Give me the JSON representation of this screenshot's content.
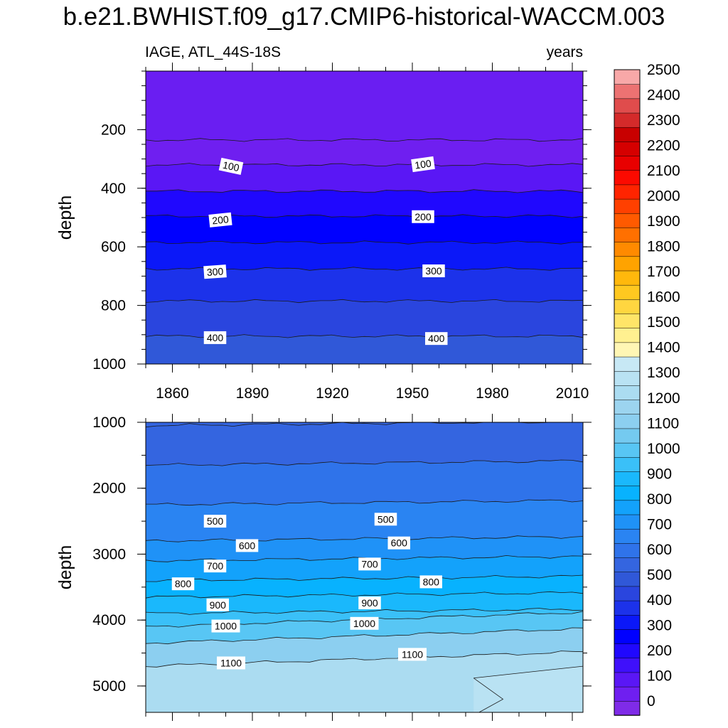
{
  "chart_data": {
    "type": "heatmap",
    "title": "b.e21.BWHIST.f09_g17.CMIP6-historical-WACCM.003",
    "subtitle_left": "IAGE, ATL_44S-18S",
    "subtitle_right": "years",
    "ylabel": "depth",
    "colorbar": {
      "levels": [
        0,
        100,
        200,
        300,
        400,
        500,
        600,
        700,
        800,
        900,
        1000,
        1100,
        1200,
        1300,
        1400,
        1500,
        1600,
        1700,
        1800,
        1900,
        2000,
        2100,
        2200,
        2300,
        2400,
        2500
      ],
      "labels": [
        "0",
        "100",
        "200",
        "300",
        "400",
        "500",
        "600",
        "700",
        "800",
        "900",
        "1000",
        "1100",
        "1200",
        "1300",
        "1400",
        "1500",
        "1600",
        "1700",
        "1800",
        "1900",
        "2000",
        "2100",
        "2200",
        "2300",
        "2400",
        "2500"
      ],
      "colors": [
        "#7f2be8",
        "#6f1ff0",
        "#5a17f5",
        "#3f10fb",
        "#2008fe",
        "#0000ff",
        "#0b18f8",
        "#1c32ea",
        "#2a45de",
        "#3058d8",
        "#3465e0",
        "#2f73ea",
        "#2a84f2",
        "#1f92f7",
        "#13a2fb",
        "#08b2fe",
        "#1ab8fc",
        "#3ac0f8",
        "#58c6f4",
        "#74caf0",
        "#8ccff0",
        "#9cd4ef",
        "#abdcf1",
        "#b9e2f3",
        "#c7e8f5",
        "#fff6b4",
        "#fff090",
        "#ffe568",
        "#ffd640",
        "#ffc820",
        "#ffb80c",
        "#ffa300",
        "#ff8a00",
        "#ff7000",
        "#ff5a00",
        "#ff4000",
        "#ff2400",
        "#fc0a00",
        "#e80000",
        "#d50000",
        "#c80000",
        "#d42a2a",
        "#e04c4c",
        "#ec7272",
        "#f8a8a8"
      ],
      "color_levels": [
        0,
        50,
        100,
        150,
        200,
        250,
        300,
        350,
        400,
        450,
        500,
        550,
        600,
        650,
        700,
        750,
        800,
        850,
        900,
        950,
        1000,
        1050,
        1100,
        1150,
        1200,
        1250,
        1300,
        1350,
        1400,
        1450,
        1500,
        1550,
        1600,
        1650,
        1700,
        1750,
        1800,
        1850,
        1900,
        1950,
        2000,
        2100,
        2200,
        2300,
        2400,
        2500
      ]
    },
    "panels": [
      {
        "name": "upper ocean",
        "xlim": [
          1850,
          2014
        ],
        "x_ticks": [
          1860,
          1890,
          1920,
          1950,
          1980,
          2010
        ],
        "x_tick_labels": [
          "1860",
          "1890",
          "1920",
          "1950",
          "1980",
          "2010"
        ],
        "ylim": [
          0,
          1000
        ],
        "y_reversed": true,
        "y_ticks": [
          200,
          400,
          600,
          800,
          1000
        ],
        "y_tick_labels": [
          "200",
          "400",
          "600",
          "800",
          "1000"
        ],
        "contours": [
          {
            "level": 50,
            "depth": 235,
            "fill": "#6f1ff0"
          },
          {
            "level": 100,
            "depth": 320,
            "fill": "#5a17f5"
          },
          {
            "level": 150,
            "depth": 410,
            "fill": "#2008fe"
          },
          {
            "level": 200,
            "depth": 495,
            "fill": "#0000ff"
          },
          {
            "level": 250,
            "depth": 585,
            "fill": "#0b18f8"
          },
          {
            "level": 300,
            "depth": 675,
            "fill": "#1c32ea"
          },
          {
            "level": 350,
            "depth": 785,
            "fill": "#2a45de"
          },
          {
            "level": 400,
            "depth": 905,
            "fill": "#3058d8"
          }
        ],
        "top_fill": "#6a1ef2",
        "contour_labels": [
          {
            "text": "100",
            "x": 1882,
            "y": 325,
            "angle": 12
          },
          {
            "text": "100",
            "x": 1954,
            "y": 318,
            "angle": -8
          },
          {
            "text": "200",
            "x": 1878,
            "y": 508,
            "angle": -6
          },
          {
            "text": "200",
            "x": 1954,
            "y": 497,
            "angle": 0
          },
          {
            "text": "300",
            "x": 1876,
            "y": 685,
            "angle": -4
          },
          {
            "text": "300",
            "x": 1958,
            "y": 682,
            "angle": 0
          },
          {
            "text": "400",
            "x": 1876,
            "y": 910,
            "angle": 0
          },
          {
            "text": "400",
            "x": 1959,
            "y": 913,
            "angle": 0
          }
        ]
      },
      {
        "name": "deep ocean",
        "xlim": [
          1850,
          2014
        ],
        "ylim": [
          1000,
          5400
        ],
        "y_reversed": true,
        "y_ticks": [
          1000,
          2000,
          3000,
          4000,
          5000
        ],
        "y_tick_labels": [
          "1000",
          "2000",
          "3000",
          "4000",
          "5000"
        ],
        "contours": [
          {
            "level": 450,
            "depth": 1050,
            "fill": "#3465e0"
          },
          {
            "level": 500,
            "depth": 1650,
            "fill": "#2f73ea"
          },
          {
            "level": 550,
            "depth": 2250,
            "fill": "#2a84f2"
          },
          {
            "level": 600,
            "depth": 2800,
            "fill": "#1f92f7"
          },
          {
            "level": 650,
            "depth": 3100,
            "fill": "#13a2fb"
          },
          {
            "level": 700,
            "depth": 3400,
            "fill": "#08b2fe"
          },
          {
            "level": 750,
            "depth": 3650,
            "fill": "#1ab8fc"
          },
          {
            "level": 800,
            "depth": 3900,
            "fill": "#3ac0f8"
          },
          {
            "level": 900,
            "depth": 4100,
            "fill": "#58c6f4"
          },
          {
            "level": 1000,
            "depth": 4350,
            "fill": "#8ccff0"
          },
          {
            "level": 1100,
            "depth": 4700,
            "fill": "#abdcf1"
          }
        ],
        "top_fill": "#3465e0",
        "contour_labels": [
          {
            "text": "500",
            "x": 1876,
            "y": 2500,
            "angle": 0
          },
          {
            "text": "500",
            "x": 1940,
            "y": 2470,
            "angle": 0
          },
          {
            "text": "600",
            "x": 1888,
            "y": 2870,
            "angle": 0
          },
          {
            "text": "600",
            "x": 1945,
            "y": 2830,
            "angle": 0
          },
          {
            "text": "700",
            "x": 1876,
            "y": 3180,
            "angle": 0
          },
          {
            "text": "700",
            "x": 1934,
            "y": 3150,
            "angle": 0
          },
          {
            "text": "800",
            "x": 1864,
            "y": 3450,
            "angle": 0
          },
          {
            "text": "800",
            "x": 1957,
            "y": 3420,
            "angle": 0
          },
          {
            "text": "900",
            "x": 1877,
            "y": 3770,
            "angle": 0
          },
          {
            "text": "900",
            "x": 1934,
            "y": 3740,
            "angle": 0
          },
          {
            "text": "1000",
            "x": 1880,
            "y": 4090,
            "angle": 0
          },
          {
            "text": "1000",
            "x": 1932,
            "y": 4050,
            "angle": 0
          },
          {
            "text": "1100",
            "x": 1882,
            "y": 4650,
            "angle": 0
          },
          {
            "text": "1100",
            "x": 1950,
            "y": 4520,
            "angle": 0
          }
        ]
      }
    ]
  }
}
